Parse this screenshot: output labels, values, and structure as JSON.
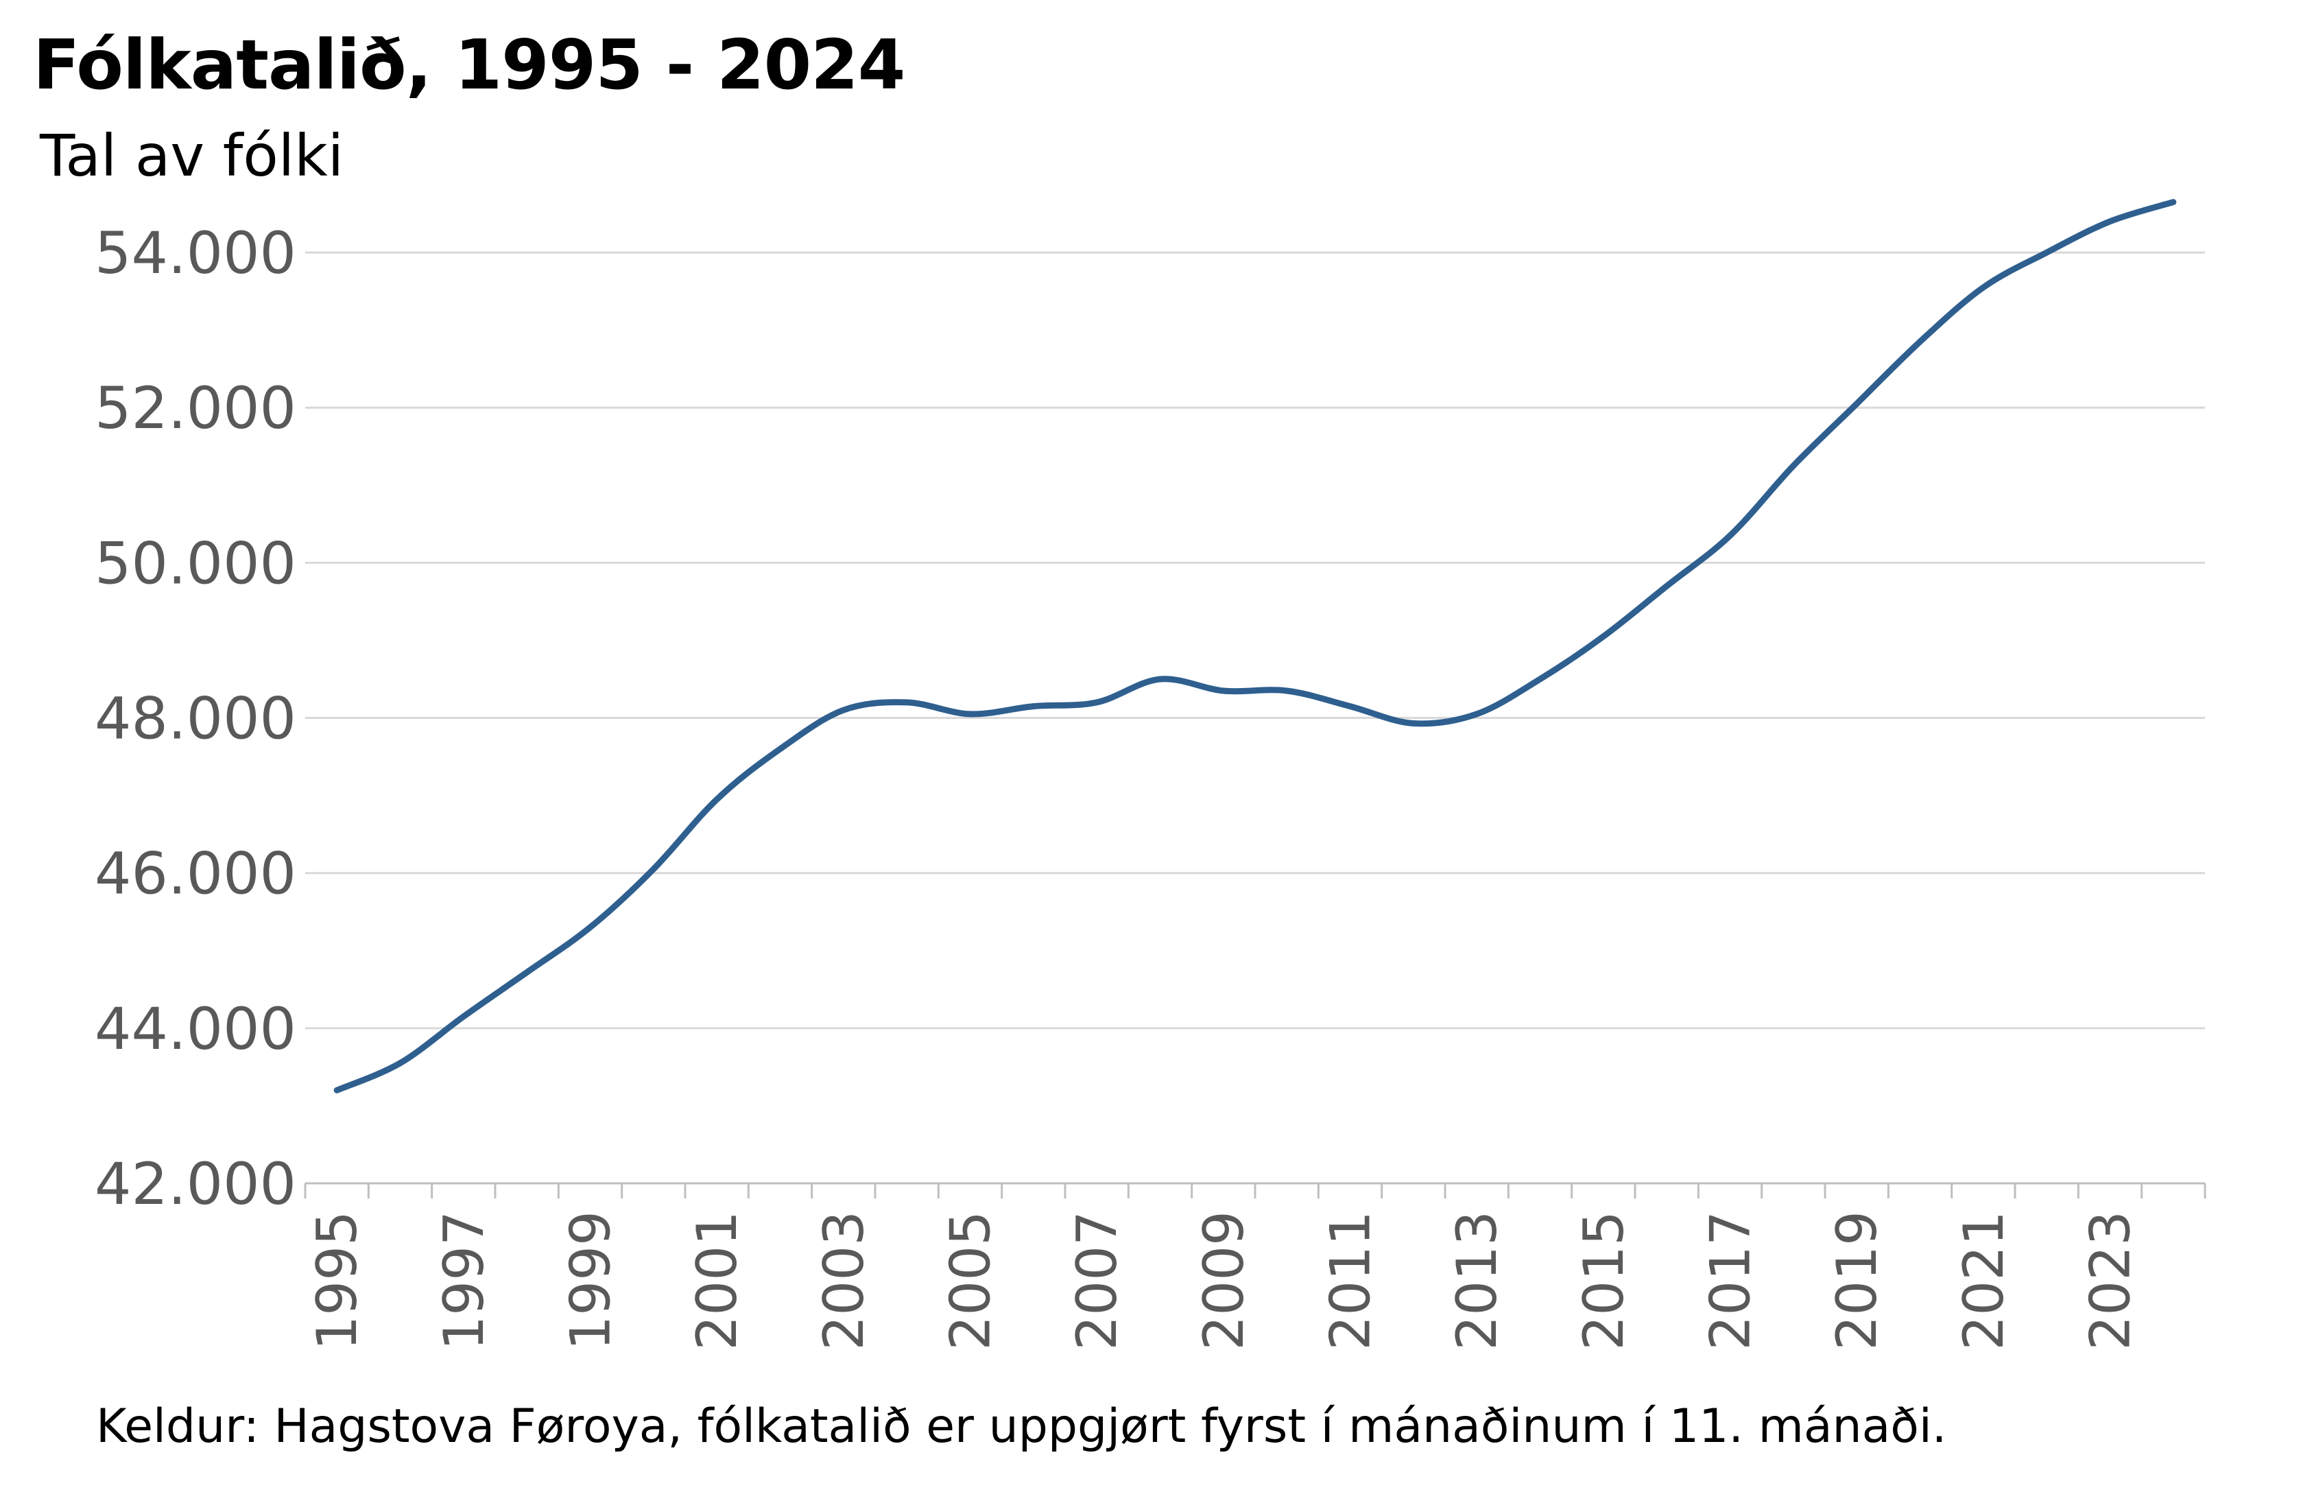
{
  "chart_data": {
    "type": "line",
    "title": "Fólkatalið, 1995 - 2024",
    "subtitle": "Tal av fólki",
    "source": "Keldur: Hagstova Føroya, fólkatalið er uppgjørt fyrst í mánaðinum í 11. mánaði.",
    "xlabel": "",
    "ylabel": "",
    "x": [
      1995,
      1996,
      1997,
      1998,
      1999,
      2000,
      2001,
      2002,
      2003,
      2004,
      2005,
      2006,
      2007,
      2008,
      2009,
      2010,
      2011,
      2012,
      2013,
      2014,
      2015,
      2016,
      2017,
      2018,
      2019,
      2020,
      2021,
      2022,
      2023,
      2024
    ],
    "series": [
      {
        "values": [
          43200,
          43550,
          44150,
          44720,
          45300,
          46050,
          46950,
          47600,
          48100,
          48200,
          48050,
          48150,
          48200,
          48500,
          48350,
          48350,
          48150,
          47930,
          48050,
          48500,
          49050,
          49700,
          50350,
          51250,
          52050,
          52850,
          53550,
          54000,
          54400,
          54650
        ],
        "color": "#2e5f8f"
      }
    ],
    "ylim": [
      42000,
      55000
    ],
    "yticks": [
      42000,
      44000,
      46000,
      48000,
      50000,
      52000,
      54000
    ],
    "ytick_labels": [
      "42.000",
      "44.000",
      "46.000",
      "48.000",
      "50.000",
      "52.000",
      "54.000"
    ],
    "xtick_labels": [
      "1995",
      "1997",
      "1999",
      "2001",
      "2003",
      "2005",
      "2007",
      "2009",
      "2011",
      "2013",
      "2015",
      "2017",
      "2019",
      "2021",
      "2023"
    ],
    "grid": true,
    "legend": "none"
  }
}
